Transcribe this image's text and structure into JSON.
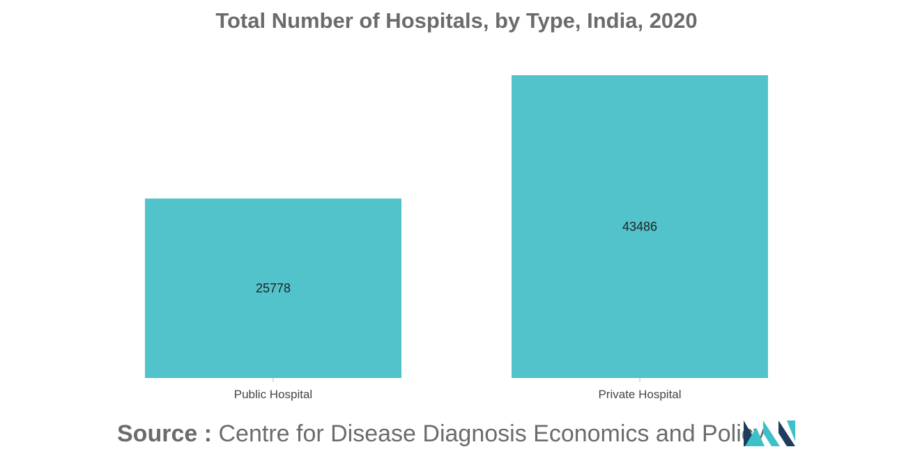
{
  "chart_data": {
    "type": "bar",
    "title": "Total Number of Hospitals, by Type, India, 2020",
    "categories": [
      "Public Hospital",
      "Private Hospital"
    ],
    "values": [
      25778,
      43486
    ],
    "xlabel": "",
    "ylabel": "",
    "ylim": [
      0,
      43486
    ],
    "grid": false,
    "legend": "none",
    "bar_color": "#52c3ca"
  },
  "source": {
    "label": "Source :",
    "text": "Centre for Disease Diagnosis Economics and Policy"
  },
  "colors": {
    "title": "#6b6b6b",
    "logo_dark": "#1d3d5c",
    "logo_teal": "#3ec0c9"
  }
}
